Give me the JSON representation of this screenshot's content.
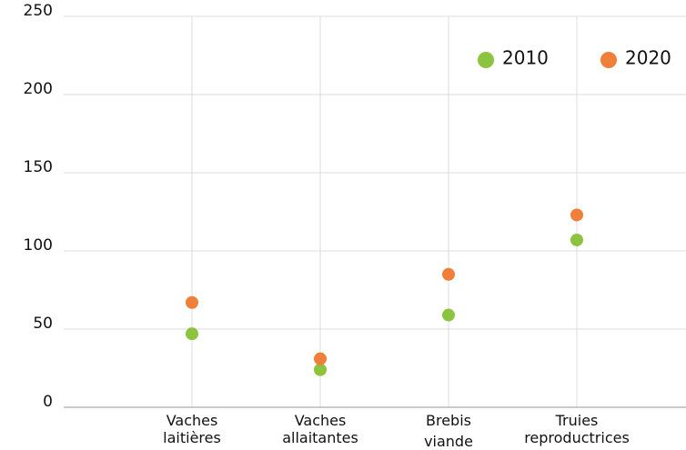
{
  "chart_data": {
    "type": "dot",
    "categories": [
      [
        "Vaches",
        "laitières"
      ],
      [
        "Vaches",
        "allaitantes"
      ],
      [
        "Brebis",
        "viande"
      ],
      [
        "Truies",
        "reproductrices"
      ]
    ],
    "series": [
      {
        "name": "2010",
        "color": "#8cc43f",
        "values": [
          47,
          24,
          59,
          107
        ]
      },
      {
        "name": "2020",
        "color": "#f07f3a",
        "values": [
          67,
          31,
          85,
          123
        ]
      }
    ],
    "ylim": [
      0,
      250
    ],
    "yticks": [
      0,
      50,
      100,
      150,
      200,
      250
    ],
    "grid": true
  }
}
